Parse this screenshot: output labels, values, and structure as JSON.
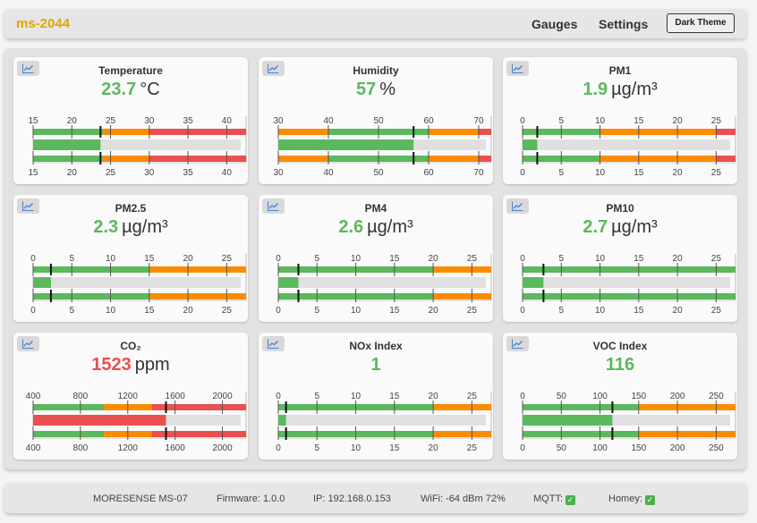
{
  "header": {
    "brand": "ms-2044",
    "nav_gauges": "Gauges",
    "nav_settings": "Settings",
    "theme_button": "Dark Theme"
  },
  "colors": {
    "good": "#5cb85c",
    "warn": "#fb8c00",
    "bad": "#e9504f",
    "track": "#e0e0e0",
    "value_good": "#5cb85c",
    "value_bad": "#e9504f"
  },
  "cards": [
    {
      "title": "Temperature",
      "value": "23.7",
      "unit": "°C",
      "status": "good",
      "gauge": {
        "min": 15,
        "max": 42.5,
        "ticks": [
          15,
          20,
          25,
          30,
          35,
          40
        ],
        "value": 23.7,
        "zones": [
          {
            "from": 15,
            "to": 24,
            "color": "good"
          },
          {
            "from": 24,
            "to": 30,
            "color": "warn"
          },
          {
            "from": 30,
            "to": 42.5,
            "color": "bad"
          }
        ]
      }
    },
    {
      "title": "Humidity",
      "value": "57",
      "unit": "%",
      "status": "good",
      "gauge": {
        "min": 30,
        "max": 72.5,
        "ticks": [
          30,
          40,
          50,
          60,
          70
        ],
        "value": 57,
        "zones": [
          {
            "from": 30,
            "to": 40,
            "color": "warn"
          },
          {
            "from": 40,
            "to": 60,
            "color": "good"
          },
          {
            "from": 60,
            "to": 70,
            "color": "warn"
          },
          {
            "from": 70,
            "to": 72.5,
            "color": "bad"
          }
        ]
      }
    },
    {
      "title": "PM1",
      "value": "1.9",
      "unit": "µg/m³",
      "status": "good",
      "gauge": {
        "min": 0,
        "max": 27.5,
        "ticks": [
          0,
          5,
          10,
          15,
          20,
          25
        ],
        "value": 1.9,
        "zones": [
          {
            "from": 0,
            "to": 10,
            "color": "good"
          },
          {
            "from": 10,
            "to": 25,
            "color": "warn"
          },
          {
            "from": 25,
            "to": 27.5,
            "color": "bad"
          }
        ]
      }
    },
    {
      "title": "PM2.5",
      "value": "2.3",
      "unit": "µg/m³",
      "status": "good",
      "gauge": {
        "min": 0,
        "max": 27.5,
        "ticks": [
          0,
          5,
          10,
          15,
          20,
          25
        ],
        "value": 2.3,
        "zones": [
          {
            "from": 0,
            "to": 15,
            "color": "good"
          },
          {
            "from": 15,
            "to": 27.5,
            "color": "warn"
          }
        ]
      }
    },
    {
      "title": "PM4",
      "value": "2.6",
      "unit": "µg/m³",
      "status": "good",
      "gauge": {
        "min": 0,
        "max": 27.5,
        "ticks": [
          0,
          5,
          10,
          15,
          20,
          25
        ],
        "value": 2.6,
        "zones": [
          {
            "from": 0,
            "to": 20,
            "color": "good"
          },
          {
            "from": 20,
            "to": 27.5,
            "color": "warn"
          }
        ]
      }
    },
    {
      "title": "PM10",
      "value": "2.7",
      "unit": "µg/m³",
      "status": "good",
      "gauge": {
        "min": 0,
        "max": 27.5,
        "ticks": [
          0,
          5,
          10,
          15,
          20,
          25
        ],
        "value": 2.7,
        "zones": [
          {
            "from": 0,
            "to": 27.5,
            "color": "good"
          }
        ]
      }
    },
    {
      "title": "CO₂",
      "value": "1523",
      "unit": "ppm",
      "status": "bad",
      "gauge": {
        "min": 400,
        "max": 2200,
        "ticks": [
          400,
          800,
          1200,
          1600,
          2000
        ],
        "value": 1523,
        "zones": [
          {
            "from": 400,
            "to": 1000,
            "color": "good"
          },
          {
            "from": 1000,
            "to": 1400,
            "color": "warn"
          },
          {
            "from": 1400,
            "to": 2200,
            "color": "bad"
          }
        ]
      }
    },
    {
      "title": "NOx Index",
      "value": "1",
      "unit": "",
      "status": "good",
      "gauge": {
        "min": 0,
        "max": 27.5,
        "ticks": [
          0,
          5,
          10,
          15,
          20,
          25
        ],
        "value": 1,
        "zones": [
          {
            "from": 0,
            "to": 20,
            "color": "good"
          },
          {
            "from": 20,
            "to": 27.5,
            "color": "warn"
          }
        ]
      }
    },
    {
      "title": "VOC Index",
      "value": "116",
      "unit": "",
      "status": "good",
      "gauge": {
        "min": 0,
        "max": 275,
        "ticks": [
          0,
          50,
          100,
          150,
          200,
          250
        ],
        "value": 116,
        "zones": [
          {
            "from": 0,
            "to": 150,
            "color": "good"
          },
          {
            "from": 150,
            "to": 275,
            "color": "warn"
          }
        ]
      }
    }
  ],
  "footer": {
    "model": "MORESENSE MS-07",
    "firmware": "Firmware: 1.0.0",
    "ip": "IP: 192.168.0.153",
    "wifi": "WiFi: -64 dBm 72%",
    "mqtt_label": "MQTT:",
    "homey_label": "Homey:",
    "mqtt_ok": true,
    "homey_ok": true
  }
}
